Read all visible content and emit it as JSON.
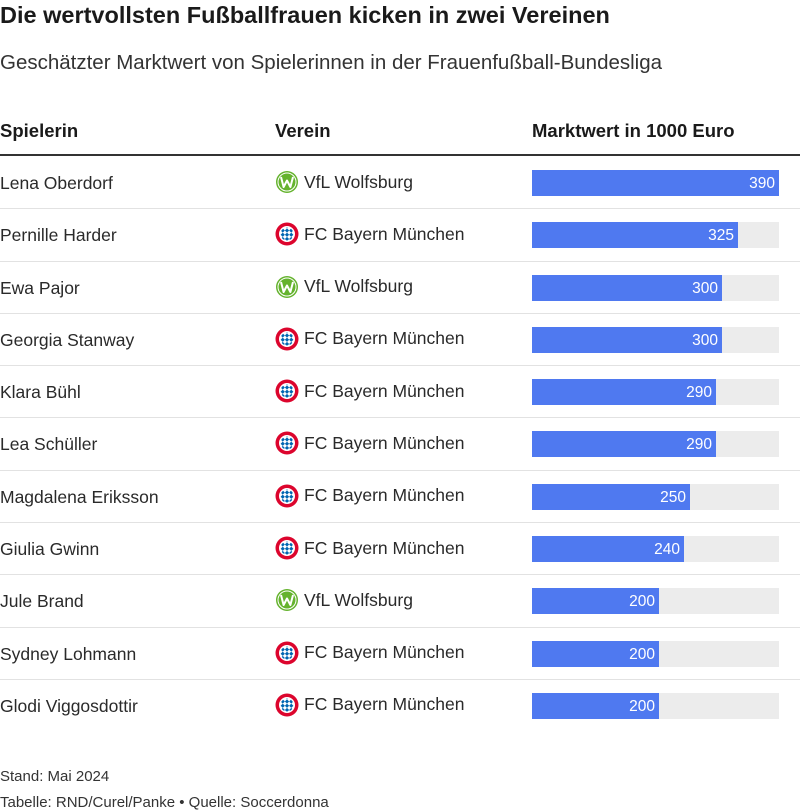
{
  "title": "Die wertvollsten Fußballfrauen kicken in zwei Vereinen",
  "subtitle": "Geschätzter Marktwert von Spielerinnen in der Frauenfußball-Bundesliga",
  "columns": {
    "player": "Spielerin",
    "club": "Verein",
    "value": "Marktwert in 1000 Euro"
  },
  "colors": {
    "bar": "#4f79f0",
    "track": "#ececec",
    "wolfsburg": "#65b32e",
    "bayern": "#dc052d",
    "bayern_blue": "#0066b2"
  },
  "chart_data": {
    "type": "table",
    "max_value": 390,
    "rows": [
      {
        "player": "Lena Oberdorf",
        "club": "VfL Wolfsburg",
        "club_icon": "wolfsburg-logo-icon",
        "value": 390
      },
      {
        "player": "Pernille Harder",
        "club": "FC Bayern München",
        "club_icon": "bayern-logo-icon",
        "value": 325
      },
      {
        "player": "Ewa Pajor",
        "club": "VfL Wolfsburg",
        "club_icon": "wolfsburg-logo-icon",
        "value": 300
      },
      {
        "player": "Georgia Stanway",
        "club": "FC Bayern München",
        "club_icon": "bayern-logo-icon",
        "value": 300
      },
      {
        "player": "Klara Bühl",
        "club": "FC Bayern München",
        "club_icon": "bayern-logo-icon",
        "value": 290
      },
      {
        "player": "Lea Schüller",
        "club": "FC Bayern München",
        "club_icon": "bayern-logo-icon",
        "value": 290
      },
      {
        "player": "Magdalena Eriksson",
        "club": "FC Bayern München",
        "club_icon": "bayern-logo-icon",
        "value": 250
      },
      {
        "player": "Giulia Gwinn",
        "club": "FC Bayern München",
        "club_icon": "bayern-logo-icon",
        "value": 240
      },
      {
        "player": "Jule Brand",
        "club": "VfL Wolfsburg",
        "club_icon": "wolfsburg-logo-icon",
        "value": 200
      },
      {
        "player": "Sydney Lohmann",
        "club": "FC Bayern München",
        "club_icon": "bayern-logo-icon",
        "value": 200
      },
      {
        "player": "Glodi Viggosdottir",
        "club": "FC Bayern München",
        "club_icon": "bayern-logo-icon",
        "value": 200
      }
    ]
  },
  "footer": {
    "date": "Stand: Mai 2024",
    "source": "Tabelle: RND/Curel/Panke • Quelle: Soccerdonna"
  }
}
